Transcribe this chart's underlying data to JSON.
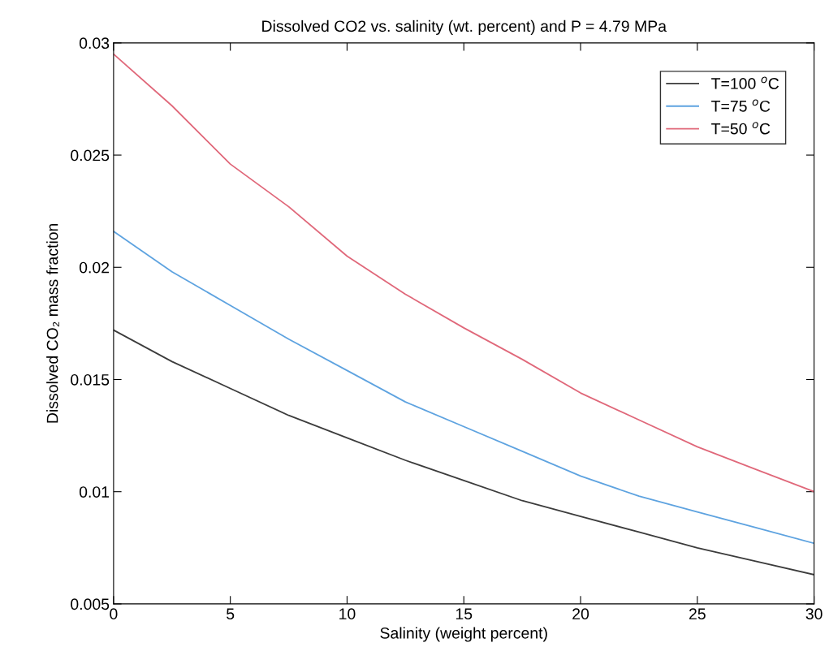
{
  "chart_data": {
    "type": "line",
    "title": "Dissolved CO2 vs. salinity (wt. percent) and P = 4.79 MPa",
    "xlabel": "Salinity (weight percent)",
    "ylabel": "Dissolved CO₂ mass fraction",
    "x": [
      0,
      2.5,
      5,
      7.5,
      10,
      12.5,
      15,
      17.5,
      20,
      22.5,
      25,
      27.5,
      30
    ],
    "series": [
      {
        "name": "T=100 $^{o}$C",
        "color": "#3c3c3c",
        "values": [
          0.0172,
          0.0158,
          0.0146,
          0.0134,
          0.0124,
          0.0114,
          0.0105,
          0.0096,
          0.0089,
          0.0082,
          0.0075,
          0.0069,
          0.0063
        ]
      },
      {
        "name": "T=75 $^{o}$C",
        "color": "#5ea3e0",
        "values": [
          0.0216,
          0.0198,
          0.0183,
          0.0168,
          0.0154,
          0.014,
          0.0129,
          0.0118,
          0.0107,
          0.0098,
          0.0091,
          0.0084,
          0.0077
        ]
      },
      {
        "name": "T=50 $^{o}$C",
        "color": "#e0687a",
        "values": [
          0.0295,
          0.0272,
          0.0246,
          0.0227,
          0.0205,
          0.0188,
          0.0173,
          0.0159,
          0.0144,
          0.0132,
          0.012,
          0.011,
          0.01
        ]
      }
    ],
    "xlim": [
      0,
      30
    ],
    "xticks": [
      0,
      5,
      10,
      15,
      20,
      25,
      30
    ],
    "ylim": [
      0.005,
      0.03
    ],
    "yticks": [
      0.005,
      0.01,
      0.015,
      0.02,
      0.025,
      0.03
    ],
    "grid": false,
    "legend": "top right",
    "marker": "none",
    "line_style": "solid"
  }
}
